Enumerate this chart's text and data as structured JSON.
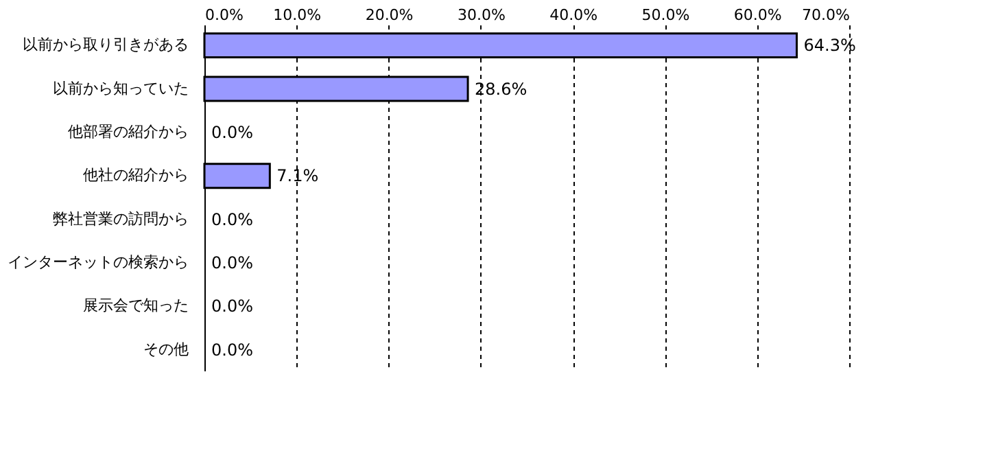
{
  "chart_data": {
    "type": "bar",
    "orientation": "horizontal",
    "categories": [
      "以前から取り引きがある",
      "以前から知っていた",
      "他部署の紹介から",
      "他社の紹介から",
      "弊社営業の訪問から",
      "インターネットの検索から",
      "展示会で知った",
      "その他"
    ],
    "values": [
      64.3,
      28.6,
      0,
      7.1,
      0,
      0,
      0,
      0
    ],
    "value_labels": [
      "64.3%",
      "28.6%",
      "0.0%",
      "7.1%",
      "0.0%",
      "0.0%",
      "0.0%",
      "0.0%"
    ],
    "color": "#9999ff",
    "xlim": [
      0,
      70
    ],
    "xticks": [
      {
        "value": 0,
        "label": "0.0%"
      },
      {
        "value": 10,
        "label": "10.0%"
      },
      {
        "value": 20,
        "label": "20.0%"
      },
      {
        "value": 30,
        "label": "30.0%"
      },
      {
        "value": 40,
        "label": "40.0%"
      },
      {
        "value": 50,
        "label": "50.0%"
      },
      {
        "value": 60,
        "label": "60.0%"
      },
      {
        "value": 70,
        "label": "70.0%"
      }
    ],
    "grid": "x"
  }
}
